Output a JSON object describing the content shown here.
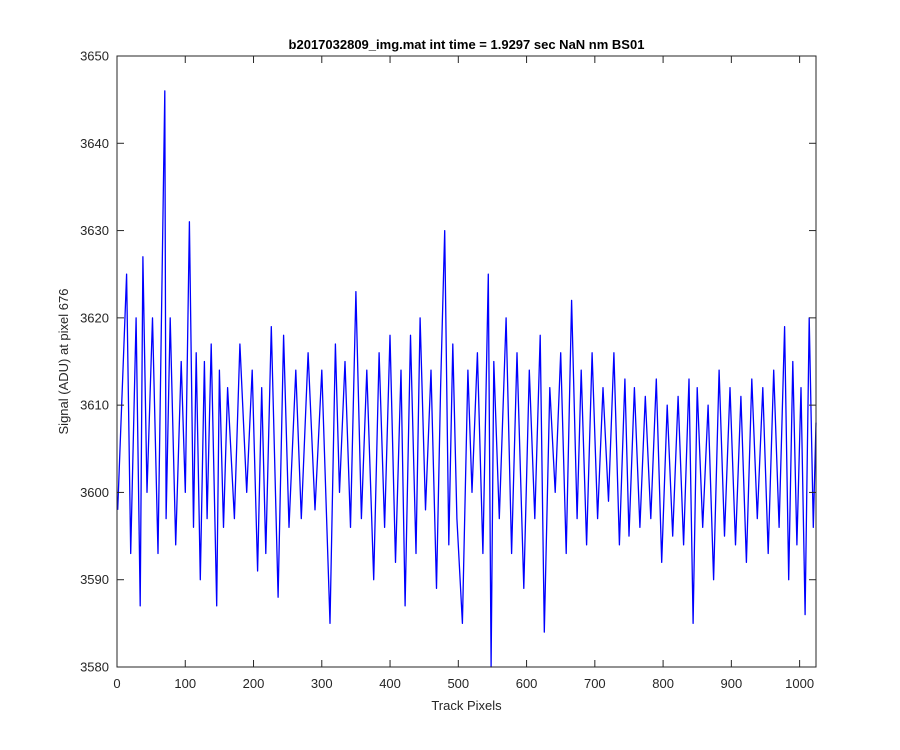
{
  "chart_data": {
    "type": "line",
    "title": "b2017032809_img.mat int time = 1.9297 sec  NaN nm BS01",
    "xlabel": "Track Pixels",
    "ylabel": "Signal (ADU) at pixel 676",
    "xlim": [
      0,
      1024
    ],
    "ylim": [
      3580,
      3650
    ],
    "xticks": [
      0,
      100,
      200,
      300,
      400,
      500,
      600,
      700,
      800,
      900,
      1000
    ],
    "yticks": [
      3580,
      3590,
      3600,
      3610,
      3620,
      3630,
      3640,
      3650
    ],
    "grid": false,
    "line_color": "#0000ff",
    "series": [
      {
        "x": [
          1,
          14,
          20,
          28,
          34,
          38,
          44,
          52,
          60,
          70,
          72,
          78,
          86,
          94,
          100,
          106,
          112,
          116,
          122,
          128,
          132,
          138,
          146,
          150,
          156,
          162,
          172,
          180,
          190,
          198,
          206,
          212,
          218,
          226,
          236,
          244,
          252,
          262,
          270,
          280,
          290,
          300,
          312,
          320,
          326,
          334,
          342,
          350,
          358,
          366,
          376,
          384,
          392,
          400,
          408,
          416,
          422,
          430,
          438,
          444,
          452,
          460,
          468,
          474,
          480,
          486,
          492,
          498,
          506,
          514,
          520,
          528,
          536,
          544,
          548,
          552,
          560,
          570,
          578,
          586,
          596,
          604,
          612,
          620,
          626,
          634,
          642,
          650,
          658,
          666,
          674,
          680,
          688,
          696,
          704,
          712,
          720,
          728,
          736,
          744,
          750,
          758,
          766,
          774,
          782,
          790,
          798,
          806,
          814,
          822,
          830,
          838,
          844,
          850,
          858,
          866,
          874,
          882,
          890,
          898,
          906,
          914,
          922,
          930,
          938,
          946,
          954,
          962,
          970,
          978,
          984,
          990,
          996,
          1002,
          1008,
          1014,
          1020,
          1024
        ],
        "y": [
          3598,
          3625,
          3593,
          3620,
          3587,
          3627,
          3600,
          3620,
          3593,
          3646,
          3597,
          3620,
          3594,
          3615,
          3600,
          3631,
          3596,
          3616,
          3590,
          3615,
          3597,
          3617,
          3587,
          3614,
          3596,
          3612,
          3597,
          3617,
          3600,
          3614,
          3591,
          3612,
          3593,
          3619,
          3588,
          3618,
          3596,
          3614,
          3597,
          3616,
          3598,
          3614,
          3585,
          3617,
          3600,
          3615,
          3596,
          3623,
          3597,
          3614,
          3590,
          3616,
          3596,
          3618,
          3592,
          3614,
          3587,
          3618,
          3593,
          3620,
          3598,
          3614,
          3589,
          3612,
          3630,
          3594,
          3617,
          3597,
          3585,
          3614,
          3600,
          3616,
          3593,
          3625,
          3580,
          3615,
          3597,
          3620,
          3593,
          3616,
          3589,
          3614,
          3597,
          3618,
          3584,
          3612,
          3600,
          3616,
          3593,
          3622,
          3597,
          3614,
          3594,
          3616,
          3597,
          3612,
          3599,
          3616,
          3594,
          3613,
          3595,
          3612,
          3596,
          3611,
          3597,
          3613,
          3592,
          3610,
          3595,
          3611,
          3594,
          3613,
          3585,
          3612,
          3596,
          3610,
          3590,
          3614,
          3595,
          3612,
          3594,
          3611,
          3592,
          3613,
          3597,
          3612,
          3593,
          3614,
          3596,
          3619,
          3590,
          3615,
          3594,
          3612,
          3586,
          3620,
          3596,
          3608
        ]
      }
    ]
  }
}
